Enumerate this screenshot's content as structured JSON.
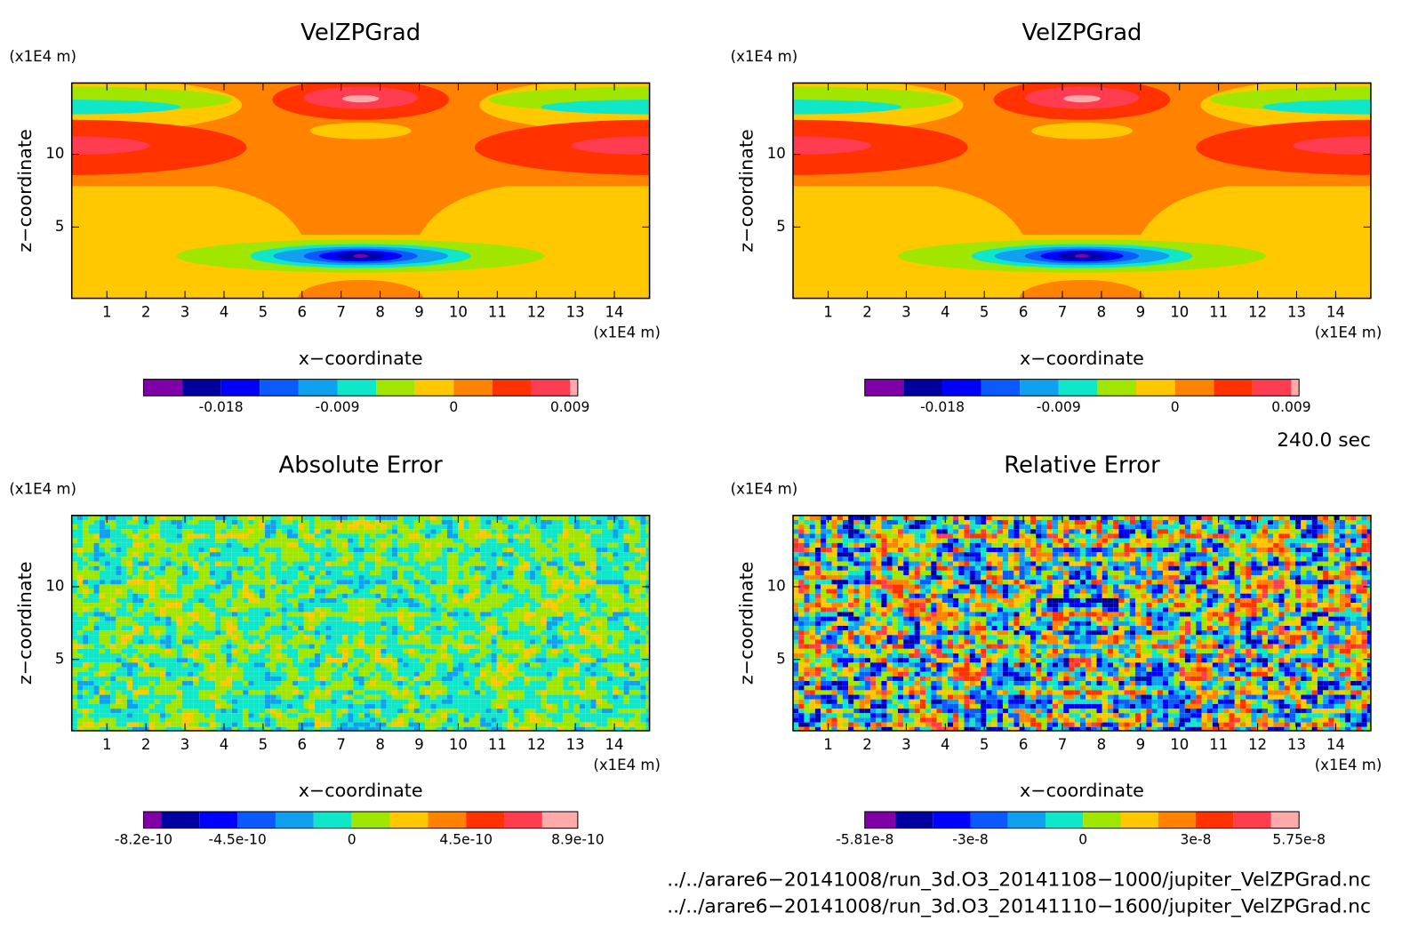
{
  "chart_data": [
    {
      "type": "contour",
      "title": "VelZPGrad",
      "x_label": "x−coordinate",
      "y_label": "z−coordinate",
      "x_unit": "(x1E4 m)",
      "y_unit": "(x1E4 m)",
      "xlim": [
        0.1,
        14.9
      ],
      "ylim": [
        0.1,
        14.9
      ],
      "xticks": [
        1,
        2,
        3,
        4,
        5,
        6,
        7,
        8,
        9,
        10,
        11,
        12,
        13,
        14
      ],
      "yticks": [
        5,
        10
      ],
      "colorbar": {
        "levels": [
          -0.024,
          -0.021,
          -0.018,
          -0.015,
          -0.012,
          -0.009,
          -0.006,
          -0.003,
          0,
          0.003,
          0.006,
          0.009,
          0.0096
        ],
        "colors": [
          "#8000a8",
          "#0000a0",
          "#0000ff",
          "#0a5aff",
          "#10a0f0",
          "#10e6c8",
          "#a0e600",
          "#ffc800",
          "#ff8200",
          "#ff3200",
          "#ff3c50",
          "#ffaaaa"
        ],
        "ticks": [
          -0.018,
          -0.009,
          0,
          0.009
        ]
      }
    },
    {
      "type": "contour",
      "title": "VelZPGrad",
      "x_label": "x−coordinate",
      "y_label": "z−coordinate",
      "x_unit": "(x1E4 m)",
      "y_unit": "(x1E4 m)",
      "xlim": [
        0.1,
        14.9
      ],
      "ylim": [
        0.1,
        14.9
      ],
      "xticks": [
        1,
        2,
        3,
        4,
        5,
        6,
        7,
        8,
        9,
        10,
        11,
        12,
        13,
        14
      ],
      "yticks": [
        5,
        10
      ],
      "colorbar": {
        "levels": [
          -0.024,
          -0.021,
          -0.018,
          -0.015,
          -0.012,
          -0.009,
          -0.006,
          -0.003,
          0,
          0.003,
          0.006,
          0.009,
          0.0096
        ],
        "colors": [
          "#8000a8",
          "#0000a0",
          "#0000ff",
          "#0a5aff",
          "#10a0f0",
          "#10e6c8",
          "#a0e600",
          "#ffc800",
          "#ff8200",
          "#ff3200",
          "#ff3c50",
          "#ffaaaa"
        ],
        "ticks": [
          -0.018,
          -0.009,
          0,
          0.009
        ]
      }
    },
    {
      "type": "contour",
      "title": "Absolute Error",
      "x_label": "x−coordinate",
      "y_label": "z−coordinate",
      "x_unit": "(x1E4 m)",
      "y_unit": "(x1E4 m)",
      "xlim": [
        0.1,
        14.9
      ],
      "ylim": [
        0.1,
        14.9
      ],
      "xticks": [
        1,
        2,
        3,
        4,
        5,
        6,
        7,
        8,
        9,
        10,
        11,
        12,
        13,
        14
      ],
      "yticks": [
        5,
        10
      ],
      "colorbar": {
        "levels": [
          -8.2e-10,
          -7.5e-10,
          -6e-10,
          -4.5e-10,
          -3e-10,
          -1.5e-10,
          0,
          1.5e-10,
          3e-10,
          4.5e-10,
          6e-10,
          7.5e-10,
          8.9e-10
        ],
        "colors": [
          "#8000a8",
          "#0000a0",
          "#0000ff",
          "#0a5aff",
          "#10a0f0",
          "#10e6c8",
          "#a0e600",
          "#ffc800",
          "#ff8200",
          "#ff3200",
          "#ff3c50",
          "#ffaaaa"
        ],
        "ticks": [
          -8.2e-10,
          -4.5e-10,
          0,
          4.5e-10,
          8.9e-10
        ]
      }
    },
    {
      "type": "contour",
      "title": "Relative Error",
      "x_label": "x−coordinate",
      "y_label": "z−coordinate",
      "x_unit": "(x1E4 m)",
      "y_unit": "(x1E4 m)",
      "xlim": [
        0.1,
        14.9
      ],
      "ylim": [
        0.1,
        14.9
      ],
      "xticks": [
        1,
        2,
        3,
        4,
        5,
        6,
        7,
        8,
        9,
        10,
        11,
        12,
        13,
        14
      ],
      "yticks": [
        5,
        10
      ],
      "colorbar": {
        "levels": [
          -5.81e-08,
          -5e-08,
          -4e-08,
          -3e-08,
          -2e-08,
          -1e-08,
          0,
          1e-08,
          2e-08,
          3e-08,
          4e-08,
          5e-08,
          5.75e-08
        ],
        "colors": [
          "#8000a8",
          "#0000a0",
          "#0000ff",
          "#0a5aff",
          "#10a0f0",
          "#10e6c8",
          "#a0e600",
          "#ffc800",
          "#ff8200",
          "#ff3200",
          "#ff3c50",
          "#ffaaaa"
        ],
        "ticks": [
          -5.81e-08,
          -3e-08,
          0,
          3e-08,
          5.75e-08
        ]
      }
    }
  ],
  "time_label": "240.0 sec",
  "files": [
    "../../arare6−20141008/run_3d.O3_20141108−1000/jupiter_VelZPGrad.nc",
    "../../arare6−20141008/run_3d.O3_20141110−1600/jupiter_VelZPGrad.nc"
  ]
}
